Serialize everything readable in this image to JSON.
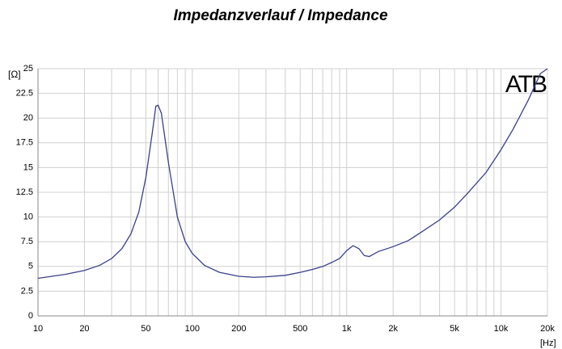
{
  "chart_data": {
    "type": "line",
    "title": "Impedanzverlauf / Impedance",
    "y_label": "[Ω]",
    "x_label": "[Hz]",
    "annotation": "ATB",
    "x": [
      10,
      15,
      20,
      25,
      30,
      35,
      40,
      45,
      50,
      55,
      58,
      60,
      63,
      70,
      80,
      90,
      100,
      120,
      150,
      200,
      250,
      300,
      400,
      500,
      600,
      700,
      800,
      900,
      1000,
      1100,
      1200,
      1300,
      1400,
      1600,
      2000,
      2500,
      3000,
      4000,
      5000,
      6000,
      8000,
      10000,
      12000,
      15000,
      18000,
      20000
    ],
    "series": [
      {
        "name": "Impedance",
        "color": "#3a3f8c",
        "values": [
          3.8,
          4.2,
          4.6,
          5.1,
          5.8,
          6.8,
          8.3,
          10.5,
          14,
          18.5,
          21.2,
          21.3,
          20.5,
          15.5,
          10,
          7.5,
          6.3,
          5.1,
          4.4,
          4.0,
          3.9,
          3.95,
          4.1,
          4.4,
          4.7,
          5.0,
          5.4,
          5.8,
          6.6,
          7.1,
          6.8,
          6.1,
          6.0,
          6.5,
          7.0,
          7.6,
          8.4,
          9.7,
          11.0,
          12.3,
          14.5,
          16.8,
          18.9,
          21.8,
          24.5,
          25
        ]
      }
    ],
    "xlog": true,
    "grid": true,
    "xlim": [
      10,
      20000
    ],
    "ylim": [
      0,
      25
    ],
    "xticks": [
      10,
      20,
      50,
      100,
      200,
      500,
      {
        "value": 1000,
        "label": "1k"
      },
      {
        "value": 2000,
        "label": "2k"
      },
      {
        "value": 5000,
        "label": "5k"
      },
      {
        "value": 10000,
        "label": "10k"
      },
      {
        "value": 20000,
        "label": "20k"
      }
    ],
    "xminor_ticks": [
      30,
      40,
      60,
      70,
      80,
      90,
      300,
      400,
      600,
      700,
      800,
      900,
      3000,
      4000,
      6000,
      7000,
      8000,
      9000
    ],
    "yticks": [
      0,
      2.5,
      5,
      7.5,
      10,
      12.5,
      15,
      17.5,
      20,
      22.5,
      25
    ]
  }
}
